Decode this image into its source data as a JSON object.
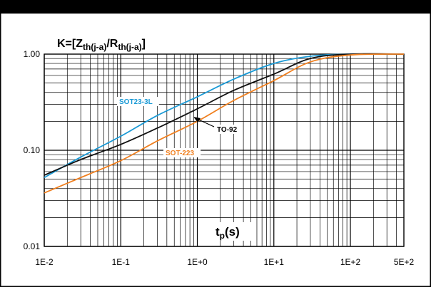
{
  "chart_data": {
    "type": "line",
    "title_parts": {
      "k": "K=[Z",
      "num_sub": "th(j-a)",
      "slash": "/R",
      "den_sub": "th(j-a)",
      "close": "]"
    },
    "xlabel_parts": {
      "t": "t",
      "sub": "p",
      "unit": "(s)"
    },
    "x_scale": "log",
    "y_scale": "log",
    "xlim": [
      0.01,
      500
    ],
    "ylim": [
      0.01,
      1.0
    ],
    "x_tick_values": [
      0.01,
      0.1,
      1,
      10,
      100,
      500
    ],
    "x_tick_labels": [
      "1E-2",
      "1E-1",
      "1E+0",
      "1E+1",
      "1E+2",
      "5E+2"
    ],
    "y_tick_values": [
      0.01,
      0.1,
      1.0
    ],
    "y_tick_labels": [
      "0.01",
      "0.10",
      "1.00"
    ],
    "grid": true,
    "series": [
      {
        "name": "SOT23-3L",
        "color": "#1a9ad6",
        "x": [
          0.01,
          0.03,
          0.1,
          0.3,
          1,
          3,
          10,
          30,
          100,
          500
        ],
        "y": [
          0.052,
          0.085,
          0.14,
          0.23,
          0.36,
          0.55,
          0.8,
          0.95,
          1.0,
          1.0
        ]
      },
      {
        "name": "TO-92",
        "color": "#111111",
        "x": [
          0.01,
          0.03,
          0.1,
          0.3,
          1,
          3,
          10,
          30,
          100,
          500
        ],
        "y": [
          0.055,
          0.08,
          0.115,
          0.17,
          0.27,
          0.42,
          0.62,
          0.9,
          1.0,
          1.0
        ]
      },
      {
        "name": "SOT-223",
        "color": "#f07f1e",
        "x": [
          0.01,
          0.03,
          0.1,
          0.3,
          1,
          3,
          10,
          30,
          100,
          500
        ],
        "y": [
          0.036,
          0.052,
          0.078,
          0.125,
          0.2,
          0.33,
          0.53,
          0.83,
          0.98,
          1.0
        ]
      }
    ]
  }
}
